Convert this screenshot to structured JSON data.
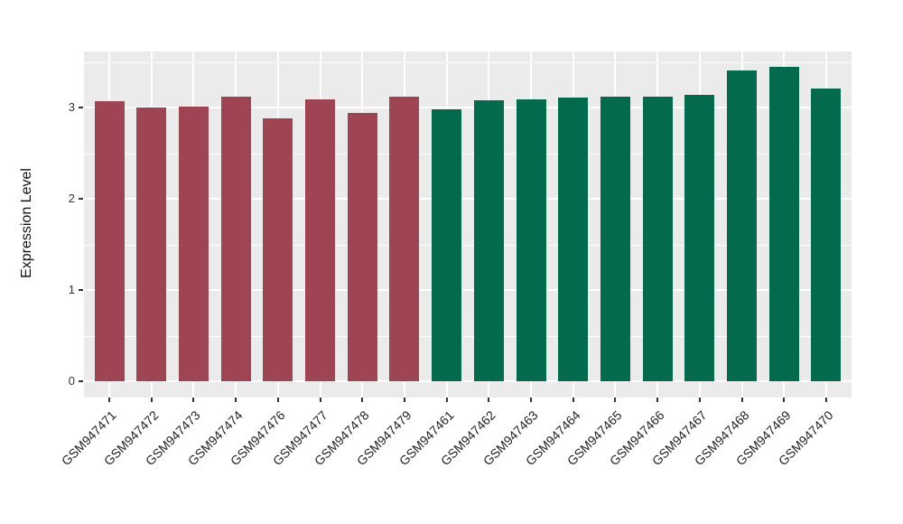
{
  "chart_data": {
    "type": "bar",
    "title": "",
    "xlabel": "",
    "ylabel": "Expression Level",
    "bars": [
      {
        "label": "GSM947471",
        "value": 3.07,
        "color": "#9E4452"
      },
      {
        "label": "GSM947472",
        "value": 3.0,
        "color": "#9E4452"
      },
      {
        "label": "GSM947473",
        "value": 3.01,
        "color": "#9E4452"
      },
      {
        "label": "GSM947474",
        "value": 3.12,
        "color": "#9E4452"
      },
      {
        "label": "GSM947476",
        "value": 2.88,
        "color": "#9E4452"
      },
      {
        "label": "GSM947477",
        "value": 3.09,
        "color": "#9E4452"
      },
      {
        "label": "GSM947478",
        "value": 2.94,
        "color": "#9E4452"
      },
      {
        "label": "GSM947479",
        "value": 3.12,
        "color": "#9E4452"
      },
      {
        "label": "GSM947461",
        "value": 2.98,
        "color": "#036A4D"
      },
      {
        "label": "GSM947462",
        "value": 3.08,
        "color": "#036A4D"
      },
      {
        "label": "GSM947463",
        "value": 3.09,
        "color": "#036A4D"
      },
      {
        "label": "GSM947464",
        "value": 3.11,
        "color": "#036A4D"
      },
      {
        "label": "GSM947465",
        "value": 3.12,
        "color": "#036A4D"
      },
      {
        "label": "GSM947466",
        "value": 3.12,
        "color": "#036A4D"
      },
      {
        "label": "GSM947467",
        "value": 3.14,
        "color": "#036A4D"
      },
      {
        "label": "GSM947468",
        "value": 3.41,
        "color": "#036A4D"
      },
      {
        "label": "GSM947469",
        "value": 3.45,
        "color": "#036A4D"
      },
      {
        "label": "GSM947470",
        "value": 3.21,
        "color": "#036A4D"
      }
    ],
    "group_colors": {
      "left_group": "#9E4452",
      "right_group": "#036A4D"
    },
    "yticks": [
      0,
      1,
      2,
      3
    ],
    "minor_gridlines": [
      0.5,
      1.5,
      2.5,
      3.5
    ],
    "ylim": [
      -0.17,
      3.63
    ],
    "grid": true,
    "legend_position": "none",
    "panel_bg": "#EBEBEB",
    "grid_color": "#FFFFFF",
    "axis_text_color": "#333333"
  }
}
